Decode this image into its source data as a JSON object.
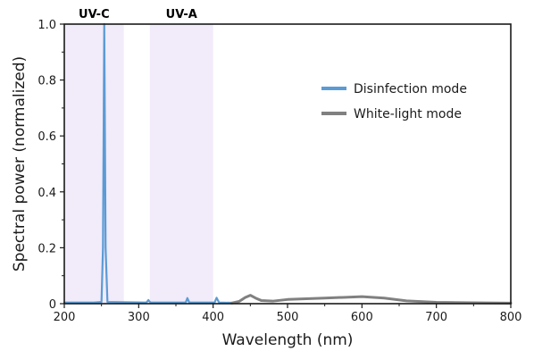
{
  "chart_data": {
    "type": "line",
    "xlabel": "Wavelength (nm)",
    "ylabel": "Spectral power (normalized)",
    "xlim": [
      200,
      800
    ],
    "ylim": [
      0,
      1.0
    ],
    "x_ticks": [
      200,
      300,
      400,
      500,
      600,
      700,
      800
    ],
    "x_tick_labels": [
      "200",
      "300",
      "400",
      "500",
      "600",
      "700",
      "800"
    ],
    "y_ticks": [
      0,
      0.2,
      0.4,
      0.6,
      0.8,
      1.0
    ],
    "y_tick_labels": [
      "0",
      "0.2",
      "0.4",
      "0.6",
      "0.8",
      "1.0"
    ],
    "grid": false,
    "legend_position": "top-right",
    "bands": [
      {
        "label": "UV-C",
        "x_range": [
          200,
          280
        ],
        "color": "#f1ebfa"
      },
      {
        "label": "UV-A",
        "x_range": [
          315,
          400
        ],
        "color": "#f1ebfa"
      }
    ],
    "series": [
      {
        "name": "Disinfection mode",
        "color": "#5b9bd5",
        "points": [
          [
            200,
            0.004
          ],
          [
            240,
            0.004
          ],
          [
            250,
            0.006
          ],
          [
            252,
            0.2
          ],
          [
            253.7,
            1.0
          ],
          [
            255.5,
            0.2
          ],
          [
            258,
            0.006
          ],
          [
            310,
            0.004
          ],
          [
            312,
            0.009
          ],
          [
            313,
            0.013
          ],
          [
            314,
            0.009
          ],
          [
            316,
            0.004
          ],
          [
            363,
            0.004
          ],
          [
            364.5,
            0.013
          ],
          [
            365.4,
            0.02
          ],
          [
            366.5,
            0.013
          ],
          [
            368,
            0.004
          ],
          [
            402,
            0.004
          ],
          [
            403.5,
            0.014
          ],
          [
            404.7,
            0.021
          ],
          [
            406,
            0.014
          ],
          [
            408,
            0.004
          ],
          [
            430,
            0.003
          ]
        ]
      },
      {
        "name": "White-light mode",
        "color": "#808080",
        "points": [
          [
            425,
            0.002
          ],
          [
            435,
            0.008
          ],
          [
            443,
            0.022
          ],
          [
            450,
            0.03
          ],
          [
            457,
            0.02
          ],
          [
            465,
            0.011
          ],
          [
            480,
            0.009
          ],
          [
            500,
            0.015
          ],
          [
            550,
            0.02
          ],
          [
            600,
            0.025
          ],
          [
            630,
            0.02
          ],
          [
            660,
            0.01
          ],
          [
            700,
            0.005
          ],
          [
            750,
            0.003
          ],
          [
            800,
            0.002
          ]
        ]
      }
    ]
  }
}
